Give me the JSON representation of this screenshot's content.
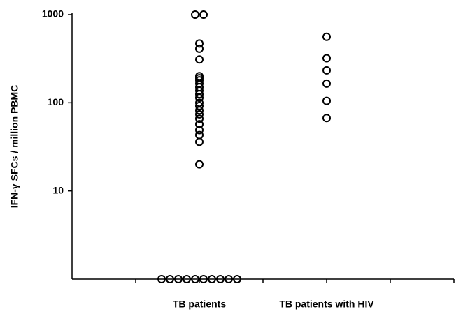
{
  "chart_data": {
    "type": "scatter",
    "y_label": "IFN-γ SFCs / million PBMC",
    "categories": [
      null,
      null,
      "TB patients",
      null,
      "TB patients with HIV",
      null,
      null
    ],
    "values": [
      [],
      [],
      [
        1000,
        1000,
        470,
        410,
        310,
        200,
        190,
        180,
        165,
        150,
        137,
        125,
        114,
        100,
        92,
        82,
        74,
        66,
        57,
        49,
        43,
        36,
        20,
        1,
        1,
        1,
        1,
        1,
        1,
        1,
        1,
        1,
        1
      ],
      [],
      [
        560,
        320,
        233,
        165,
        105,
        67
      ],
      [],
      []
    ],
    "ylim": [
      1,
      1000
    ],
    "yticks": [
      10,
      100,
      1000
    ],
    "log_y": true,
    "grid": false,
    "color": "#000000"
  }
}
